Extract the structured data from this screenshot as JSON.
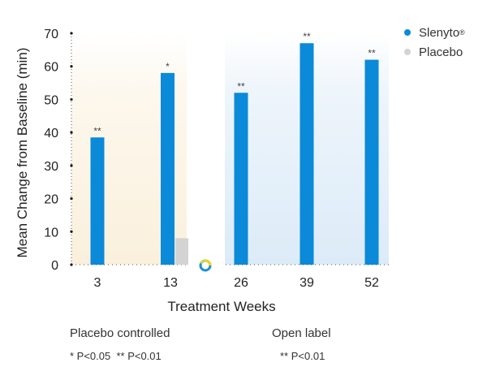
{
  "chart_data": {
    "type": "bar",
    "categories": [
      "3",
      "13",
      "26",
      "39",
      "52"
    ],
    "series": [
      {
        "name": "Slenyto®",
        "color": "#0a8ad8",
        "values": [
          38.5,
          58,
          52,
          67,
          62
        ]
      },
      {
        "name": "Placebo",
        "color": "#d3d3d3",
        "values": [
          null,
          8,
          null,
          null,
          null
        ]
      }
    ],
    "significance": [
      "**",
      "*",
      "**",
      "**",
      "**"
    ],
    "xlabel": "Treatment Weeks",
    "ylabel": "Mean Change from Baseline (min)",
    "ylim": [
      0,
      70
    ],
    "yticks": [
      0,
      10,
      20,
      30,
      40,
      50,
      60,
      70
    ],
    "regions": [
      {
        "name": "Placebo controlled",
        "categories": [
          "3",
          "13"
        ],
        "color": "#fbf3e3"
      },
      {
        "name": "Open label",
        "categories": [
          "26",
          "39",
          "52"
        ],
        "color": "#e3eff9"
      }
    ],
    "legend": {
      "position": "top-right"
    }
  },
  "legend": {
    "items": [
      {
        "label": "Slenyto",
        "mark": "®",
        "color": "#0a8ad8"
      },
      {
        "label": "Placebo",
        "color": "#d3d3d3"
      }
    ]
  },
  "footnotes": {
    "placebo_title": "Placebo controlled",
    "placebo_sig": "* P<0.05  ** P<0.01",
    "open_title": "Open label",
    "open_sig": "** P<0.01"
  }
}
